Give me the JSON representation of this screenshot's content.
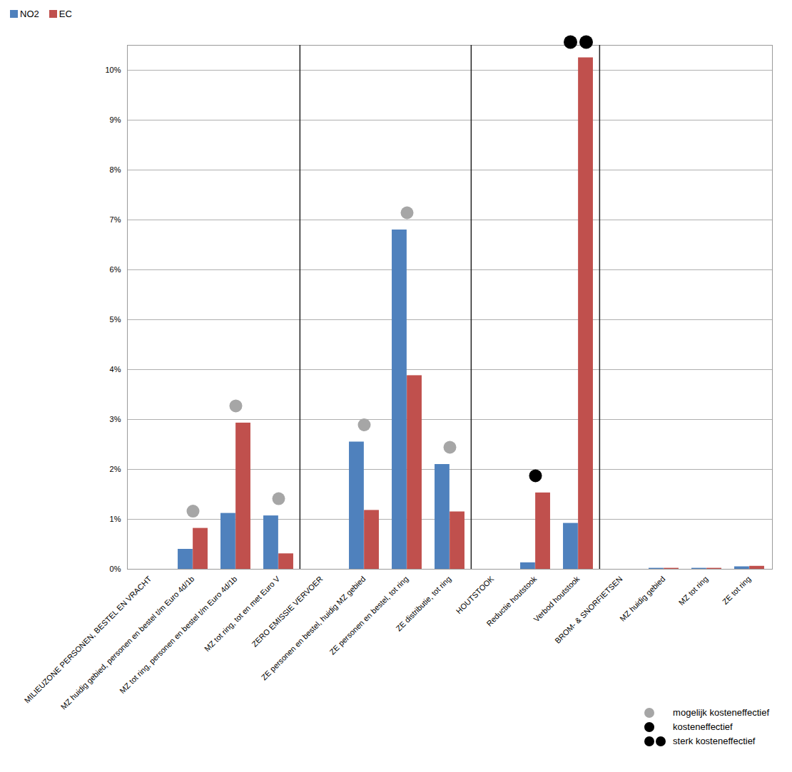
{
  "chart_data": {
    "type": "bar",
    "categories": [
      "MILIEUZONE PERSONEN, BESTEL EN VRACHT",
      "MZ huidig gebied, personen en bestel t/m Euro 4d/1b",
      "MZ tot ring, personen en bestel t/m Euro 4d/1b",
      "MZ tot ring, tot en met Euro V",
      "ZERO EMISSIE VERVOER",
      "ZE personen en bestel, huidig MZ gebied",
      "ZE personen en bestel, tot ring",
      "ZE distributie, tot ring",
      "HOUTSTOOK",
      "Reductie houtstook",
      "Verbod houtstook",
      "BROM- & SNORFIETSEN",
      "MZ huidig gebied",
      "MZ tot ring",
      "ZE tot ring"
    ],
    "series": [
      {
        "name": "NO2",
        "color": "#4f81bd",
        "values": [
          null,
          0.4,
          1.12,
          1.07,
          null,
          2.55,
          6.8,
          2.1,
          null,
          0.13,
          0.92,
          null,
          0.02,
          0.02,
          0.05
        ]
      },
      {
        "name": "EC",
        "color": "#c0504d",
        "values": [
          null,
          0.82,
          2.93,
          0.31,
          null,
          1.18,
          3.88,
          1.15,
          null,
          1.53,
          10.25,
          null,
          0.02,
          0.02,
          0.06
        ]
      }
    ],
    "ylim": [
      0,
      10.5
    ],
    "yticks": [
      {
        "value": 0,
        "label": "0%"
      },
      {
        "value": 1,
        "label": "1%"
      },
      {
        "value": 2,
        "label": "2%"
      },
      {
        "value": 3,
        "label": "3%"
      },
      {
        "value": 4,
        "label": "4%"
      },
      {
        "value": 5,
        "label": "5%"
      },
      {
        "value": 6,
        "label": "6%"
      },
      {
        "value": 7,
        "label": "7%"
      },
      {
        "value": 8,
        "label": "8%"
      },
      {
        "value": 9,
        "label": "9%"
      },
      {
        "value": 10,
        "label": "10%"
      }
    ],
    "grid": true,
    "legend": "top-left",
    "cost_effectiveness": {
      "levels": [
        "mogelijk kosteneffectief",
        "kosteneffectief",
        "sterk kosteneffectief"
      ],
      "values": [
        null,
        0,
        0,
        0,
        null,
        0,
        0,
        0,
        null,
        1,
        2,
        null,
        null,
        null,
        null
      ]
    }
  }
}
